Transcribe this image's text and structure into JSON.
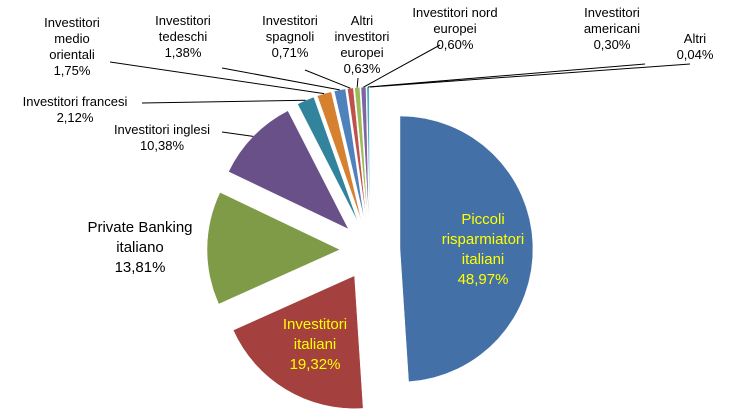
{
  "chart_data": {
    "type": "pie",
    "categories": [
      "Piccoli risparmiatori italiani",
      "Investitori italiani",
      "Private Banking italiano",
      "Investitori inglesi",
      "Investitori francesi",
      "Investitori medio orientali",
      "Investitori tedeschi",
      "Investitori spagnoli",
      "Altri investitori europei",
      "Investitori nord europei",
      "Investitori americani",
      "Altri"
    ],
    "values": [
      48.97,
      19.32,
      13.81,
      10.38,
      2.12,
      1.75,
      1.38,
      0.71,
      0.63,
      0.6,
      0.3,
      0.04
    ],
    "value_labels": [
      "48,97%",
      "19,32%",
      "13,81%",
      "10,38%",
      "2,12%",
      "1,75%",
      "1,38%",
      "0,71%",
      "0,63%",
      "0,60%",
      "0,30%",
      "0,04%"
    ],
    "colors": [
      "#4470a8",
      "#a4403d",
      "#7f9b48",
      "#6a5089",
      "#31849c",
      "#d6812f",
      "#4f81bd",
      "#c0504d",
      "#9bbb59",
      "#8064a2",
      "#4bacc6",
      "#f79646"
    ]
  }
}
